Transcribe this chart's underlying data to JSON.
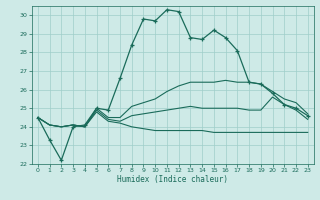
{
  "xlabel": "Humidex (Indice chaleur)",
  "xlim": [
    -0.5,
    23.5
  ],
  "ylim": [
    22,
    30.5
  ],
  "yticks": [
    22,
    23,
    24,
    25,
    26,
    27,
    28,
    29,
    30
  ],
  "xticks": [
    0,
    1,
    2,
    3,
    4,
    5,
    6,
    7,
    8,
    9,
    10,
    11,
    12,
    13,
    14,
    15,
    16,
    17,
    18,
    19,
    20,
    21,
    22,
    23
  ],
  "bg_color": "#ceeae7",
  "grid_color": "#a0ceca",
  "line_color": "#1a6b5a",
  "line1": [
    24.5,
    23.3,
    22.2,
    24.0,
    24.1,
    25.0,
    24.9,
    26.6,
    28.4,
    29.8,
    29.7,
    30.3,
    30.2,
    28.8,
    28.7,
    29.2,
    28.8,
    28.1,
    26.4,
    26.3,
    25.8,
    25.2,
    25.0,
    24.6
  ],
  "line2": [
    24.5,
    24.1,
    24.0,
    24.1,
    24.0,
    25.0,
    24.5,
    24.5,
    25.1,
    25.3,
    25.5,
    25.9,
    26.2,
    26.4,
    26.4,
    26.4,
    26.5,
    26.4,
    26.4,
    26.3,
    25.9,
    25.5,
    25.3,
    24.7
  ],
  "line3": [
    24.5,
    24.1,
    24.0,
    24.1,
    24.0,
    24.9,
    24.4,
    24.3,
    24.6,
    24.7,
    24.8,
    24.9,
    25.0,
    25.1,
    25.0,
    25.0,
    25.0,
    25.0,
    24.9,
    24.9,
    25.6,
    25.2,
    24.9,
    24.4
  ],
  "line4": [
    24.5,
    24.1,
    24.0,
    24.1,
    24.0,
    24.8,
    24.3,
    24.2,
    24.0,
    23.9,
    23.8,
    23.8,
    23.8,
    23.8,
    23.8,
    23.7,
    23.7,
    23.7,
    23.7,
    23.7,
    23.7,
    23.7,
    23.7,
    23.7
  ]
}
